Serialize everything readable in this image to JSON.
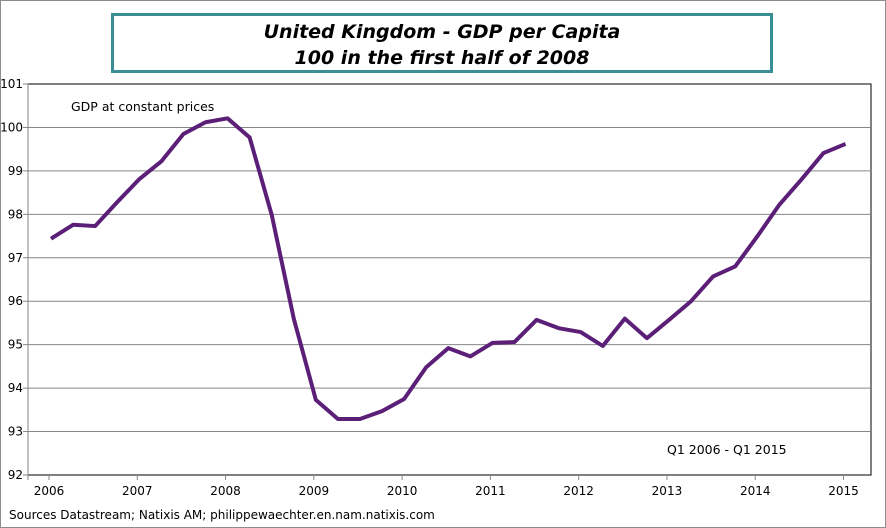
{
  "chart_data": {
    "type": "line",
    "title": "United Kingdom - GDP per Capita",
    "subtitle": "100 in the first half of 2008",
    "xlabel": "",
    "ylabel": "",
    "ylim": [
      92,
      101
    ],
    "yticks": [
      "92",
      "93",
      "94",
      "95",
      "96",
      "97",
      "98",
      "99",
      "100",
      "101"
    ],
    "xticks": [
      "2006",
      "2007",
      "2008",
      "2009",
      "2010",
      "2011",
      "2012",
      "2013",
      "2014",
      "2015"
    ],
    "frequency": "quarterly",
    "x_start": "Q1 2006",
    "x_end": "Q1 2015",
    "grid": true,
    "series_label": "GDP at constant prices",
    "period_annotation": "Q1 2006 - Q1 2015",
    "color": "#5b1f78",
    "series": [
      {
        "name": "GDP at constant prices",
        "values": [
          97.44,
          97.76,
          97.73,
          98.28,
          98.81,
          99.22,
          99.85,
          100.12,
          100.21,
          99.77,
          97.99,
          95.6,
          93.73,
          93.29,
          93.29,
          93.47,
          93.75,
          94.48,
          94.92,
          94.73,
          95.04,
          95.06,
          95.57,
          95.38,
          95.29,
          94.97,
          95.6,
          95.15,
          95.57,
          96.0,
          96.57,
          96.8,
          97.49,
          98.22,
          98.8,
          99.41,
          99.62
        ]
      }
    ]
  },
  "footer": "Sources Datastream;  Natixis AM; philippewaechter.en.nam.natixis.com"
}
